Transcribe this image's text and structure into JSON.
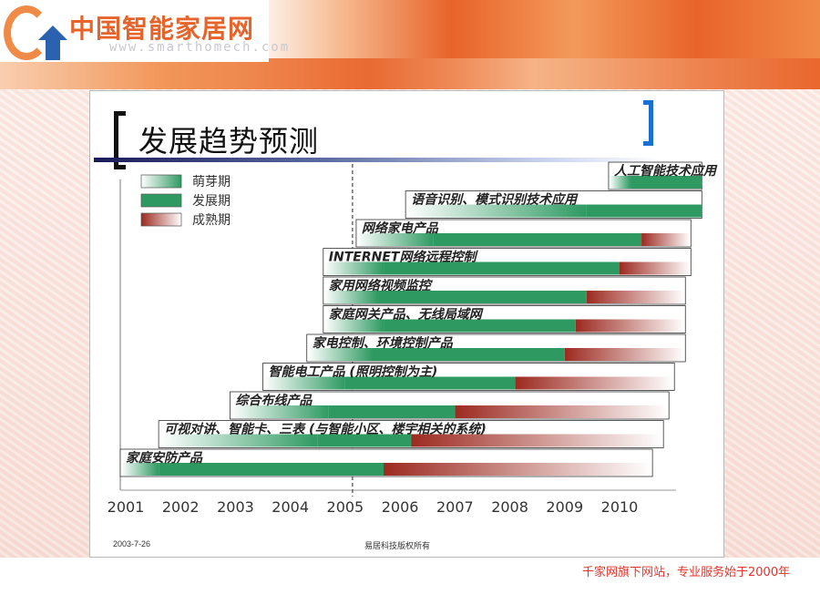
{
  "header": {
    "logo_title": "中国智能家居网",
    "logo_url": "www.smarthomech.com"
  },
  "slide": {
    "title": "发展趋势预测",
    "footer_date": "2003-7-26",
    "footer_copyright": "易居科技版权所有"
  },
  "site_note": "千家网旗下网站，专业服务始于2000年",
  "colors": {
    "sprout": "#ffffff",
    "develop": "#2e9a62",
    "mature": "#9c2a20",
    "accent_orange": "#e8632a",
    "accent_blue": "#1a6fd0"
  },
  "chart_data": {
    "type": "gantt",
    "legend": [
      "萌芽期",
      "发展期",
      "成熟期"
    ],
    "years": [
      "2001",
      "2002",
      "2003",
      "2004",
      "2005",
      "2006",
      "2007",
      "2008",
      "2009",
      "2010"
    ],
    "tasks": [
      {
        "label": "人工智能技术应用",
        "start": 2009.8,
        "develop_start": 2010.2,
        "mature_start": null,
        "end": 2011.5
      },
      {
        "label": "语音识别、模式识别技术应用",
        "start": 2006.1,
        "develop_start": 2009.4,
        "mature_start": null,
        "end": 2011.5
      },
      {
        "label": "网络家电产品",
        "start": 2005.2,
        "develop_start": 2006.6,
        "mature_start": 2010.4,
        "end": 2011.3
      },
      {
        "label": "INTERNET网络远程控制",
        "start": 2004.6,
        "develop_start": 2005.7,
        "mature_start": 2010.0,
        "end": 2011.3
      },
      {
        "label": "家用网络视频监控",
        "start": 2004.6,
        "develop_start": 2005.6,
        "mature_start": 2009.4,
        "end": 2011.2
      },
      {
        "label": "家庭网关产品、无线局域网",
        "start": 2004.6,
        "develop_start": 2005.7,
        "mature_start": 2009.2,
        "end": 2011.2
      },
      {
        "label": "家电控制、环境控制产品",
        "start": 2004.3,
        "develop_start": 2005.5,
        "mature_start": 2009.0,
        "end": 2011.2
      },
      {
        "label": "智能电工产品 (照明控制为主)",
        "start": 2003.5,
        "develop_start": 2005.0,
        "mature_start": 2008.1,
        "end": 2011.0
      },
      {
        "label": "综合布线产品",
        "start": 2002.9,
        "develop_start": 2004.7,
        "mature_start": 2007.0,
        "end": 2010.9
      },
      {
        "label": "可视对讲、智能卡、三表 (与智能小区、楼宇相关的系统)",
        "start": 2001.6,
        "develop_start": 2004.5,
        "mature_start": 2006.2,
        "end": 2010.8
      },
      {
        "label": "家庭安防产品",
        "start": 2000.9,
        "develop_start": 2001.6,
        "mature_start": 2005.7,
        "end": 2010.6
      }
    ]
  }
}
